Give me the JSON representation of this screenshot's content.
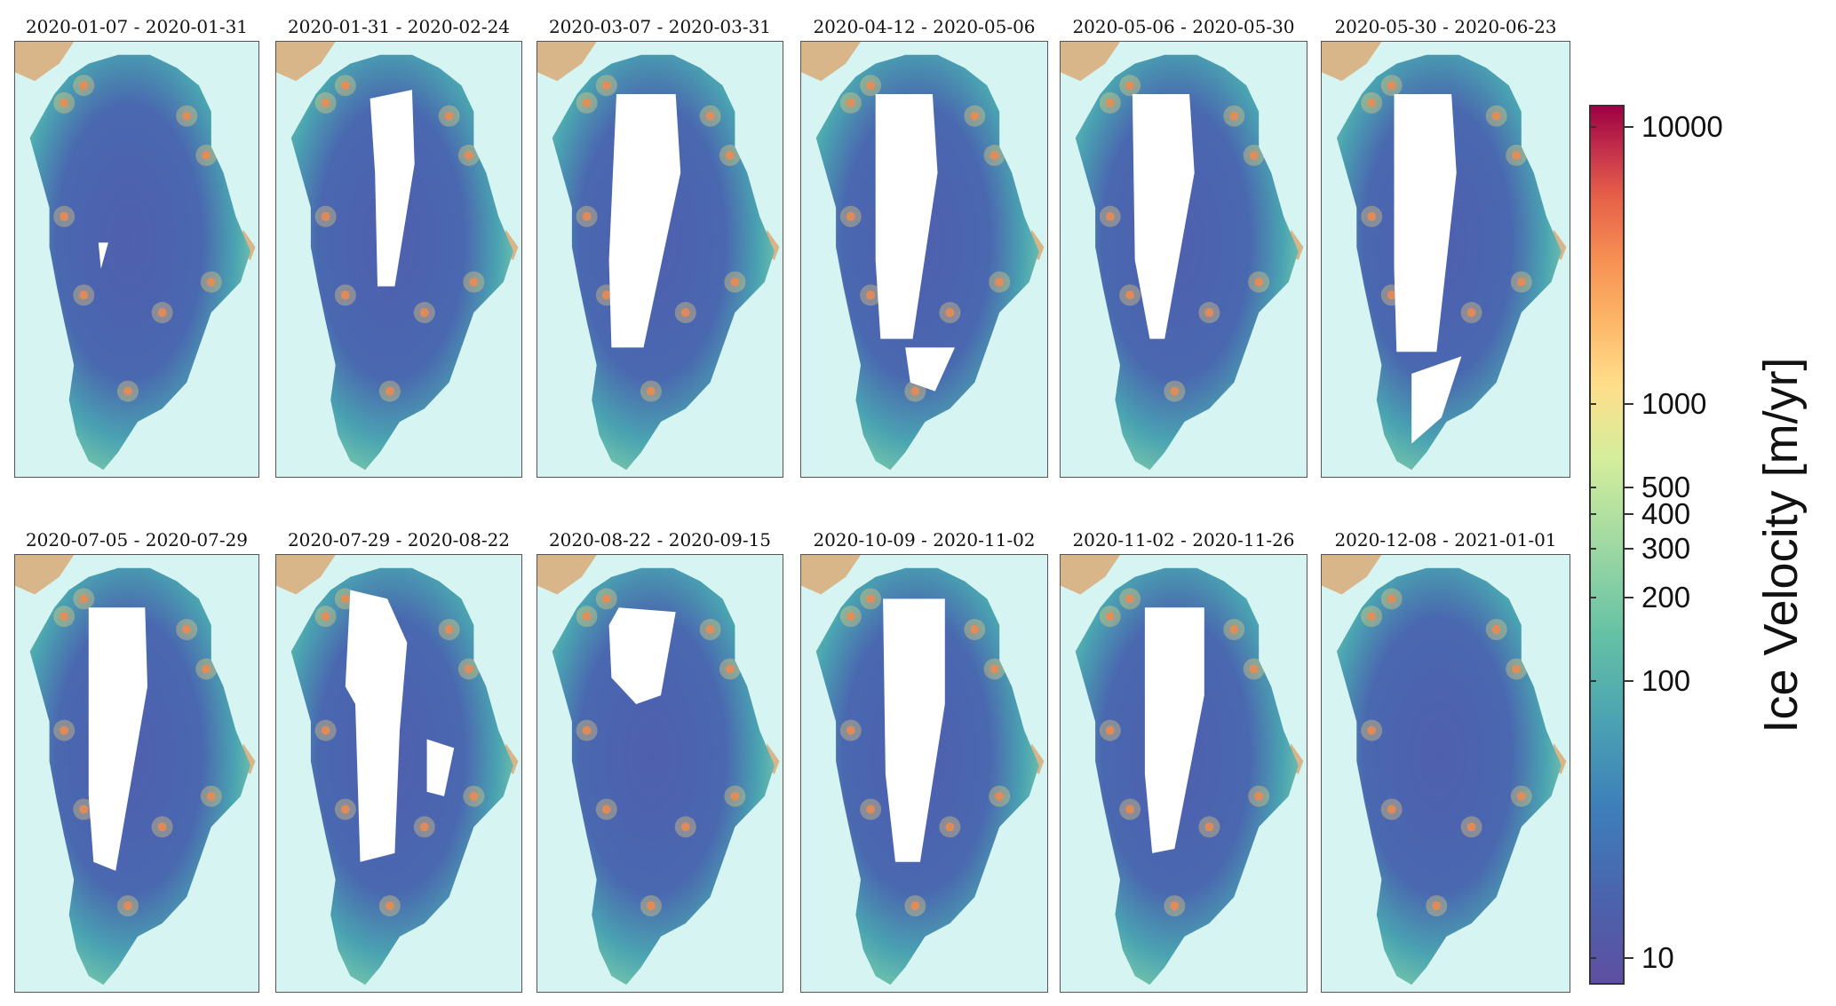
{
  "panels": [
    {
      "title": "2020-01-07 - 2020-01-31"
    },
    {
      "title": "2020-01-31 - 2020-02-24"
    },
    {
      "title": "2020-03-07 - 2020-03-31"
    },
    {
      "title": "2020-04-12 - 2020-05-06"
    },
    {
      "title": "2020-05-06 - 2020-05-30"
    },
    {
      "title": "2020-05-30 - 2020-06-23"
    },
    {
      "title": "2020-07-05 - 2020-07-29"
    },
    {
      "title": "2020-07-29 - 2020-08-22"
    },
    {
      "title": "2020-08-22 - 2020-09-15"
    },
    {
      "title": "2020-10-09 - 2020-11-02"
    },
    {
      "title": "2020-11-02 - 2020-11-26"
    },
    {
      "title": "2020-12-08 - 2021-01-01"
    }
  ],
  "colorbar": {
    "title": "Ice Velocity [m/yr]",
    "scale": "log",
    "range": [
      8,
      12000
    ],
    "ticks": [
      {
        "value": 10000,
        "label": "10000"
      },
      {
        "value": 1000,
        "label": "1000"
      },
      {
        "value": 500,
        "label": "500"
      },
      {
        "value": 400,
        "label": "400"
      },
      {
        "value": 300,
        "label": "300"
      },
      {
        "value": 200,
        "label": "200"
      },
      {
        "value": 100,
        "label": "100"
      },
      {
        "value": 10,
        "label": "10"
      }
    ],
    "colors": [
      "#5e4fa2",
      "#3d7fbb",
      "#66c2a5",
      "#d5ee9b",
      "#fedf8b",
      "#f68d52",
      "#c3304a",
      "#9e0142"
    ]
  },
  "colors": {
    "ocean": "#d6f4f2",
    "land": "#d9b58a",
    "ice_interior": "#4f5fae",
    "no_data": "#ffffff"
  }
}
